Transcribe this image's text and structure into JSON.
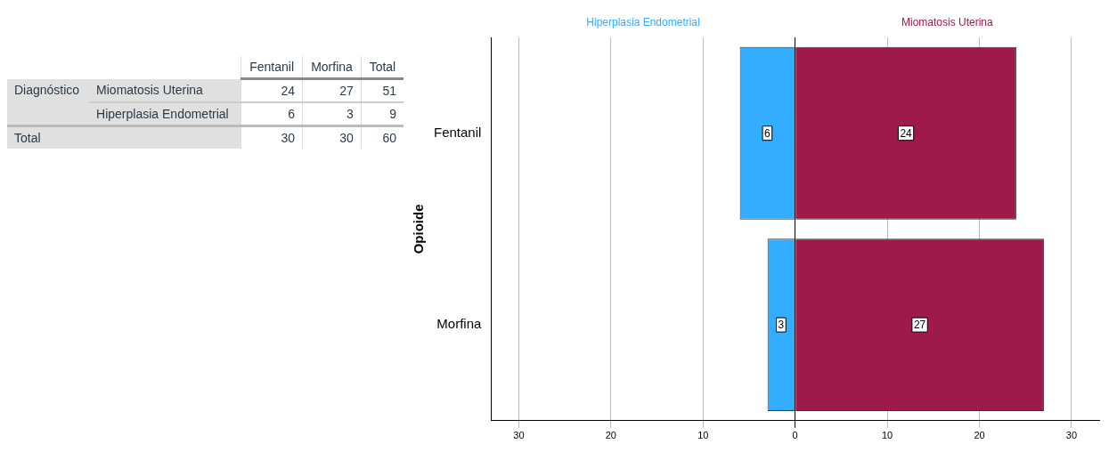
{
  "chart_data": [
    {
      "type": "other",
      "ylabel": "Diagnóstico",
      "categories": [
        "Fentanil",
        "Morfina",
        "Total"
      ],
      "y_categories": [
        "Miomatosis Uterina",
        "Hiperplasia Endometrial",
        "Total"
      ],
      "cell_labels": [
        [
          "24",
          "27",
          "51"
        ],
        [
          "6",
          "3",
          "9"
        ],
        [
          "30",
          "30",
          "60"
        ]
      ]
    },
    {
      "type": "bar",
      "orientation": "horizontal",
      "ylabel": "Opioide",
      "categories": [
        "Fentanil",
        "Morfina"
      ],
      "data_labels": true,
      "series": [
        {
          "name": "Hiperplasia Endometrial",
          "color": "#33adff",
          "values": [
            6,
            3
          ],
          "base": [
            -6,
            -3
          ]
        },
        {
          "name": "Miomatosis Uterina",
          "color": "#9e1a4b",
          "values": [
            24,
            27
          ]
        }
      ],
      "xlim": [
        -33,
        33
      ],
      "xticks": [
        {
          "value": -30,
          "label": "30"
        },
        {
          "value": -20,
          "label": "20"
        },
        {
          "value": -10,
          "label": "10"
        },
        0,
        10,
        20,
        30
      ],
      "grid": "x",
      "legend": false
    }
  ]
}
